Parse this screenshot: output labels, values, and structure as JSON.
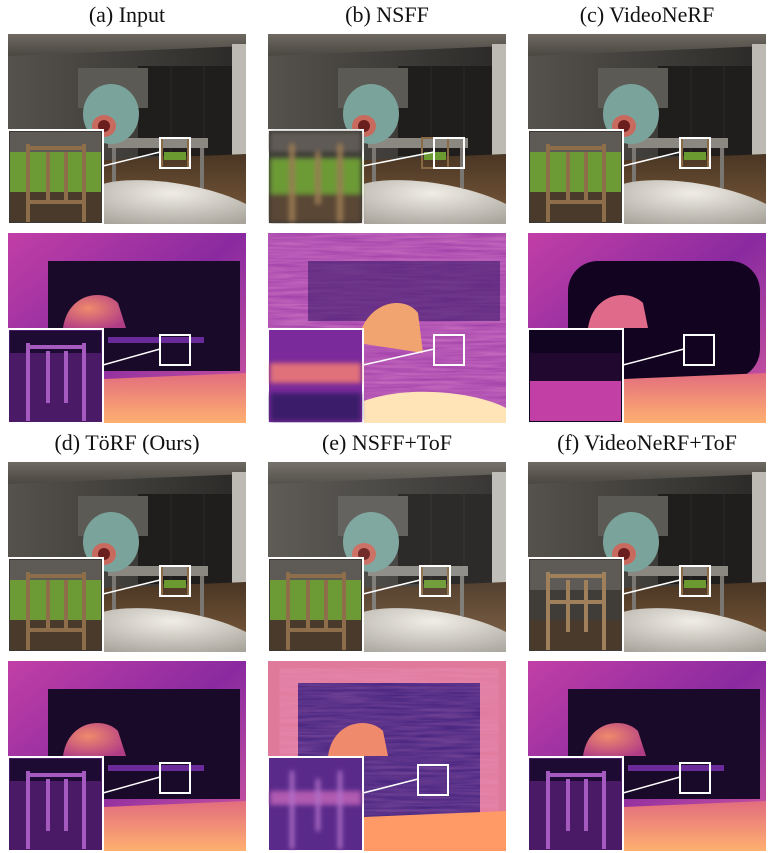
{
  "figure": {
    "top_captions": [
      "(a) Input",
      "(b) NSFF",
      "(c) VideoNeRF"
    ],
    "bottom_captions": [
      "(d) TöRF (Ours)",
      "(e) NSFF+ToF",
      "(f) VideoNeRF+ToF"
    ]
  },
  "colors": {
    "rgb_wall": "#4b4944",
    "rgb_floor": "#6a5038",
    "rgb_cabinet": "#1e1d1c",
    "rgb_bed": "#d9d6cf",
    "rgb_chair_seat": "#5c8a2a",
    "depth_near": "#ff9e5c",
    "depth_mid": "#b22a9a",
    "depth_far": "#160824",
    "inset_border": "#ffffff"
  }
}
